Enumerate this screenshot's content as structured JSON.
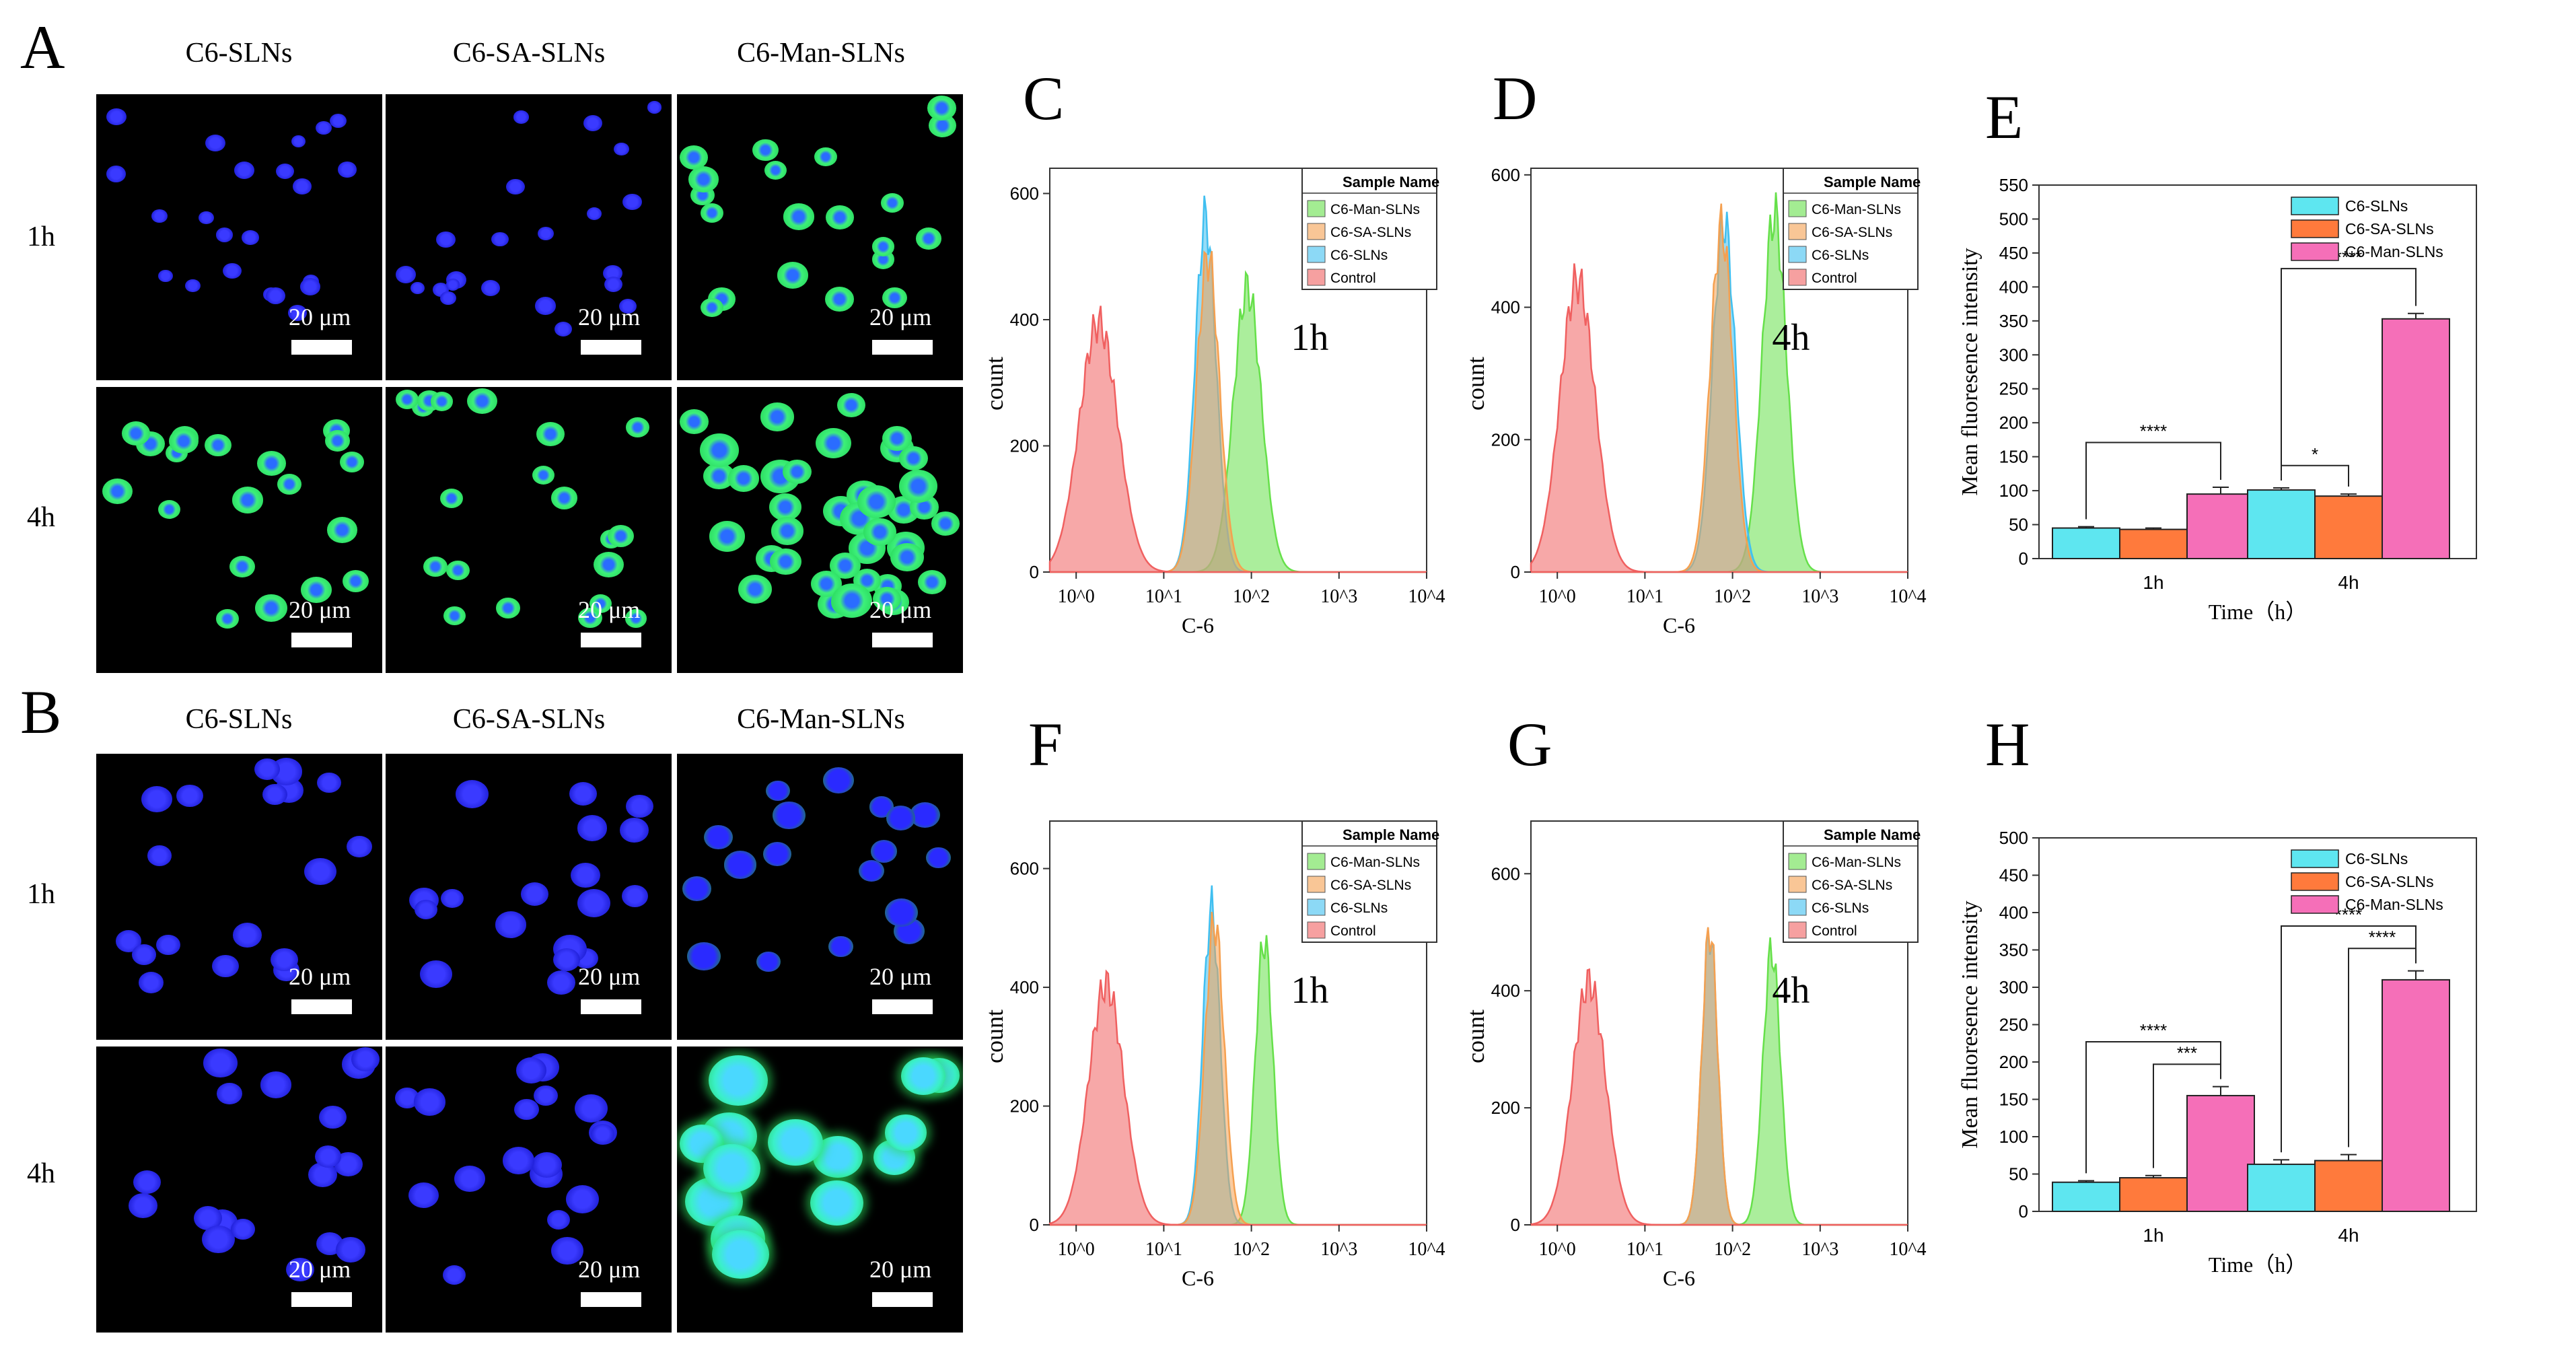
{
  "figure": {
    "panel_letters": [
      "A",
      "B",
      "C",
      "D",
      "E",
      "F",
      "G",
      "H"
    ],
    "micro_columns": [
      "C6-SLNs",
      "C6-SA-SLNs",
      "C6-Man-SLNs"
    ],
    "micro_rows": [
      "1h",
      "4h"
    ],
    "scale_label": "20 μm",
    "colors": {
      "c6_slns": "#5EE6F0",
      "c6_sa_slns": "#FF7A3C",
      "c6_man_slns": "#F56FB8",
      "control": "#F04A4A",
      "hist_green": "#66E04A",
      "hist_orange": "#F5A050",
      "hist_blue": "#40BFF0",
      "hist_red": "#F06060"
    }
  },
  "chart_data": [
    {
      "id": "C",
      "type": "area",
      "time_label": "1h",
      "xlabel": "C-6",
      "ylabel": "count",
      "xscale": "log",
      "xlim": [
        0.5,
        10000
      ],
      "ylim": [
        0,
        640
      ],
      "yticks": [
        0,
        200,
        400,
        600
      ],
      "xticks": [
        "10^0",
        "10^1",
        "10^2",
        "10^3",
        "10^4"
      ],
      "legend": {
        "title": "Sample Name",
        "entries": [
          "C6-Man-SLNs",
          "C6-SA-SLNs",
          "C6-SLNs",
          "Control"
        ]
      },
      "series": [
        {
          "name": "Control",
          "peak_x": 1.8,
          "peak_y": 395,
          "width": 0.22
        },
        {
          "name": "C6-SLNs",
          "peak_x": 30,
          "peak_y": 560,
          "width": 0.12
        },
        {
          "name": "C6-SA-SLNs",
          "peak_x": 32,
          "peak_y": 500,
          "width": 0.13
        },
        {
          "name": "C6-Man-SLNs",
          "peak_x": 90,
          "peak_y": 450,
          "width": 0.16
        }
      ]
    },
    {
      "id": "D",
      "type": "area",
      "time_label": "4h",
      "xlabel": "C-6",
      "ylabel": "count",
      "xscale": "log",
      "xlim": [
        0.5,
        10000
      ],
      "ylim": [
        0,
        610
      ],
      "yticks": [
        0,
        200,
        400,
        600
      ],
      "xticks": [
        "10^0",
        "10^1",
        "10^2",
        "10^3",
        "10^4"
      ],
      "legend": {
        "title": "Sample Name",
        "entries": [
          "C6-Man-SLNs",
          "C6-SA-SLNs",
          "C6-SLNs",
          "Control"
        ]
      },
      "series": [
        {
          "name": "Control",
          "peak_x": 1.7,
          "peak_y": 440,
          "width": 0.2
        },
        {
          "name": "C6-SLNs",
          "peak_x": 80,
          "peak_y": 530,
          "width": 0.13
        },
        {
          "name": "C6-SA-SLNs",
          "peak_x": 75,
          "peak_y": 520,
          "width": 0.13
        },
        {
          "name": "C6-Man-SLNs",
          "peak_x": 300,
          "peak_y": 540,
          "width": 0.14
        }
      ]
    },
    {
      "id": "E",
      "type": "bar",
      "xlabel": "Time（h）",
      "ylabel": "Mean fluoresence intensity",
      "ylim": [
        0,
        550
      ],
      "yticks": [
        0,
        50,
        100,
        150,
        200,
        250,
        300,
        350,
        400,
        450,
        500,
        550
      ],
      "categories": [
        "1h",
        "4h"
      ],
      "series": [
        {
          "name": "C6-SLNs",
          "values": [
            45,
            101
          ],
          "errors": [
            2,
            3
          ]
        },
        {
          "name": "C6-SA-SLNs",
          "values": [
            43,
            92
          ],
          "errors": [
            2,
            3
          ]
        },
        {
          "name": "C6-Man-SLNs",
          "values": [
            95,
            353
          ],
          "errors": [
            10,
            8
          ]
        }
      ],
      "legend_position": "top-right",
      "significance": [
        {
          "label": "****",
          "group": "1h",
          "from": "C6-SLNs",
          "to": "C6-Man-SLNs"
        },
        {
          "label": "****",
          "group": "4h",
          "from": "C6-SLNs",
          "to": "C6-Man-SLNs"
        },
        {
          "label": "*",
          "group": "4h",
          "from": "C6-SLNs",
          "to": "C6-SA-SLNs"
        }
      ]
    },
    {
      "id": "F",
      "type": "area",
      "time_label": "1h",
      "xlabel": "C-6",
      "ylabel": "count",
      "xscale": "log",
      "xlim": [
        0.5,
        10000
      ],
      "ylim": [
        0,
        680
      ],
      "yticks": [
        0,
        200,
        400,
        600
      ],
      "xticks": [
        "10^0",
        "10^1",
        "10^2",
        "10^3",
        "10^4"
      ],
      "legend": {
        "title": "Sample Name",
        "entries": [
          "C6-Man-SLNs",
          "C6-SA-SLNs",
          "C6-SLNs",
          "Control"
        ]
      },
      "series": [
        {
          "name": "Control",
          "peak_x": 2.2,
          "peak_y": 405,
          "width": 0.2
        },
        {
          "name": "C6-SLNs",
          "peak_x": 35,
          "peak_y": 530,
          "width": 0.1
        },
        {
          "name": "C6-SA-SLNs",
          "peak_x": 38,
          "peak_y": 510,
          "width": 0.11
        },
        {
          "name": "C6-Man-SLNs",
          "peak_x": 140,
          "peak_y": 480,
          "width": 0.1
        }
      ]
    },
    {
      "id": "G",
      "type": "area",
      "time_label": "4h",
      "xlabel": "C-6",
      "ylabel": "count",
      "xscale": "log",
      "xlim": [
        0.5,
        10000
      ],
      "ylim": [
        0,
        690
      ],
      "yticks": [
        0,
        200,
        400,
        600
      ],
      "xticks": [
        "10^0",
        "10^1",
        "10^2",
        "10^3",
        "10^4"
      ],
      "legend": {
        "title": "Sample Name",
        "entries": [
          "C6-Man-SLNs",
          "C6-SA-SLNs",
          "C6-SLNs",
          "Control"
        ]
      },
      "series": [
        {
          "name": "Control",
          "peak_x": 2.3,
          "peak_y": 415,
          "width": 0.19
        },
        {
          "name": "C6-SLNs",
          "peak_x": 55,
          "peak_y": 500,
          "width": 0.09
        },
        {
          "name": "C6-SA-SLNs",
          "peak_x": 55,
          "peak_y": 505,
          "width": 0.09
        },
        {
          "name": "C6-Man-SLNs",
          "peak_x": 280,
          "peak_y": 470,
          "width": 0.1
        }
      ]
    },
    {
      "id": "H",
      "type": "bar",
      "xlabel": "Time（h）",
      "ylabel": "Mean fluoresence intensity",
      "ylim": [
        0,
        500
      ],
      "yticks": [
        0,
        50,
        100,
        150,
        200,
        250,
        300,
        350,
        400,
        450,
        500
      ],
      "categories": [
        "1h",
        "4h"
      ],
      "series": [
        {
          "name": "C6-SLNs",
          "values": [
            39,
            63
          ],
          "errors": [
            2,
            6
          ]
        },
        {
          "name": "C6-SA-SLNs",
          "values": [
            45,
            68
          ],
          "errors": [
            3,
            8
          ]
        },
        {
          "name": "C6-Man-SLNs",
          "values": [
            155,
            310
          ],
          "errors": [
            12,
            12
          ]
        }
      ],
      "legend_position": "top-right",
      "significance": [
        {
          "label": "****",
          "group": "1h",
          "from": "C6-SLNs",
          "to": "C6-Man-SLNs"
        },
        {
          "label": "***",
          "group": "1h",
          "from": "C6-SA-SLNs",
          "to": "C6-Man-SLNs"
        },
        {
          "label": "****",
          "group": "4h",
          "from": "C6-SLNs",
          "to": "C6-Man-SLNs"
        },
        {
          "label": "****",
          "group": "4h",
          "from": "C6-SA-SLNs",
          "to": "C6-Man-SLNs"
        }
      ]
    }
  ]
}
